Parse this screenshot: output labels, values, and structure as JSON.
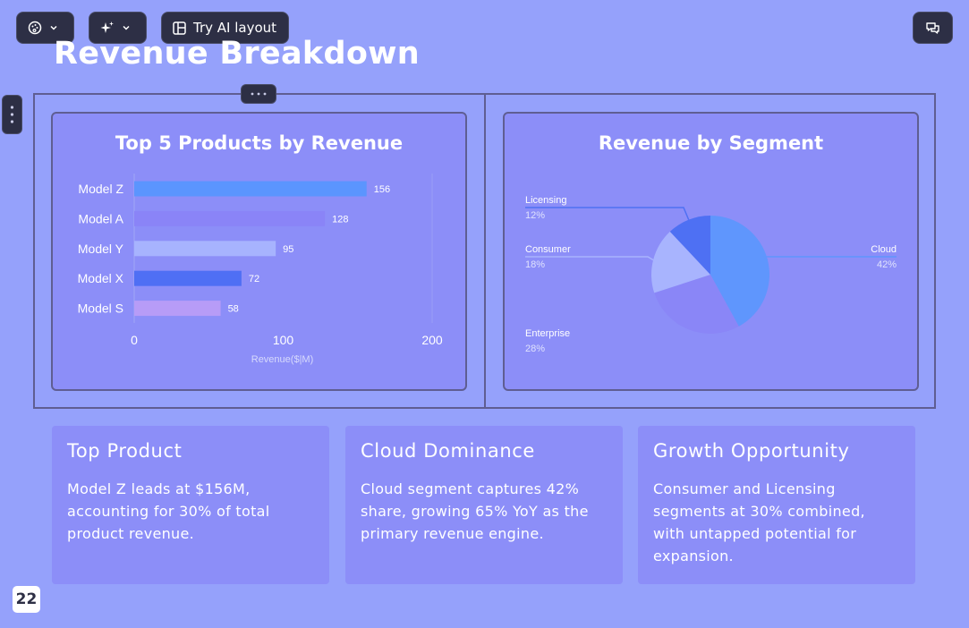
{
  "toolbar": {
    "theme_icon": "palette-icon",
    "ai_icon": "sparkles-icon",
    "ai_layout_label": "Try AI layout",
    "ai_layout_icon": "layout-icon",
    "comment_icon": "comment-icon"
  },
  "slide": {
    "title": "Revenue Breakdown",
    "page_number": "22"
  },
  "colors": {
    "background": "#95a1fb",
    "card": "#8c8ef8",
    "toolbar": "#2d2f45"
  },
  "insights": [
    {
      "title": "Top Product",
      "body": "Model Z leads at $156M, accounting for 30% of total product revenue."
    },
    {
      "title": "Cloud Dominance",
      "body": "Cloud segment captures 42% share, growing 65% YoY as the primary revenue engine."
    },
    {
      "title": "Growth Opportunity",
      "body": "Consumer and Licensing segments at 30% combined, with untapped potential for expansion."
    }
  ],
  "chart_data": [
    {
      "type": "bar",
      "orientation": "horizontal",
      "title": "Top 5 Products by Revenue",
      "categories": [
        "Model Z",
        "Model A",
        "Model Y",
        "Model X",
        "Model S"
      ],
      "values": [
        156,
        128,
        95,
        72,
        58
      ],
      "colors": [
        "#5b95fe",
        "#8a84f7",
        "#a7b3fe",
        "#4f6ff4",
        "#b79cf7"
      ],
      "xlabel": "Revenue($|M)",
      "ylabel": "",
      "xlim": [
        0,
        200
      ],
      "xticks": [
        "0",
        "100",
        "200"
      ],
      "data_labels": true,
      "grid": false
    },
    {
      "type": "pie",
      "title": "Revenue by Segment",
      "categories": [
        "Cloud",
        "Enterprise",
        "Consumer",
        "Licensing"
      ],
      "values": [
        42,
        28,
        18,
        12
      ],
      "labels": [
        "42%",
        "28%",
        "18%",
        "12%"
      ],
      "colors": [
        "#5f96fd",
        "#8a86f7",
        "#a8b4fe",
        "#4e70f3"
      ],
      "legend": "callout-labels"
    }
  ]
}
